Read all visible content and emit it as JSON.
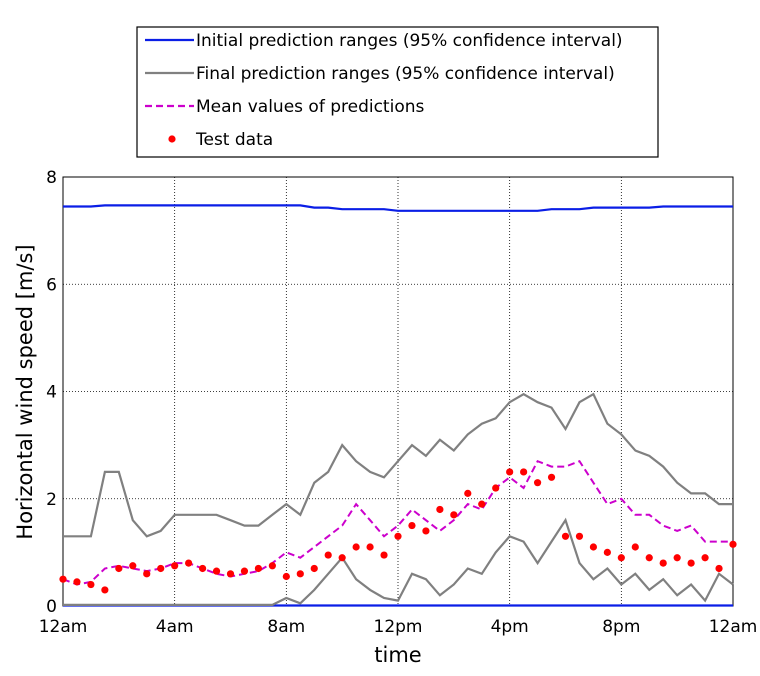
{
  "chart_data": {
    "type": "line",
    "xlabel": "time",
    "ylabel": "Horizontal wind speed [m/s]",
    "x": [
      0,
      0.5,
      1,
      1.5,
      2,
      2.5,
      3,
      3.5,
      4,
      4.5,
      5,
      5.5,
      6,
      6.5,
      7,
      7.5,
      8,
      8.5,
      9,
      9.5,
      10,
      10.5,
      11,
      11.5,
      12,
      12.5,
      13,
      13.5,
      14,
      14.5,
      15,
      15.5,
      16,
      16.5,
      17,
      17.5,
      18,
      18.5,
      19,
      19.5,
      20,
      20.5,
      21,
      21.5,
      22,
      22.5,
      23,
      23.5,
      24
    ],
    "xlim": [
      0,
      24
    ],
    "xticks": [
      {
        "value": 0,
        "label": "12am"
      },
      {
        "value": 4,
        "label": "4am"
      },
      {
        "value": 8,
        "label": "8am"
      },
      {
        "value": 12,
        "label": "12pm"
      },
      {
        "value": 16,
        "label": "4pm"
      },
      {
        "value": 20,
        "label": "8pm"
      },
      {
        "value": 24,
        "label": "12am"
      }
    ],
    "ylim": [
      0,
      8
    ],
    "yticks": [
      0,
      2,
      4,
      6,
      8
    ],
    "grid": true,
    "series": [
      {
        "name": "Initial prediction ranges (95% confidence interval)",
        "color": "#0a1ee6",
        "style": "solid",
        "values": [
          7.45,
          7.45,
          7.45,
          7.47,
          7.47,
          7.47,
          7.47,
          7.47,
          7.47,
          7.47,
          7.47,
          7.47,
          7.47,
          7.47,
          7.47,
          7.47,
          7.47,
          7.47,
          7.43,
          7.43,
          7.4,
          7.4,
          7.4,
          7.4,
          7.37,
          7.37,
          7.37,
          7.37,
          7.37,
          7.37,
          7.37,
          7.37,
          7.37,
          7.37,
          7.37,
          7.4,
          7.4,
          7.4,
          7.43,
          7.43,
          7.43,
          7.43,
          7.43,
          7.45,
          7.45,
          7.45,
          7.45,
          7.45,
          7.45
        ]
      },
      {
        "color": "#0a1ee6",
        "style": "solid",
        "values": [
          0.01,
          0.01,
          0.01,
          0.01,
          0.01,
          0.01,
          0.01,
          0.01,
          0.01,
          0.01,
          0.01,
          0.01,
          0.01,
          0.01,
          0.01,
          0.01,
          0.01,
          0.01,
          0.01,
          0.01,
          0.01,
          0.01,
          0.01,
          0.01,
          0.01,
          0.01,
          0.01,
          0.01,
          0.01,
          0.01,
          0.01,
          0.01,
          0.01,
          0.01,
          0.01,
          0.01,
          0.01,
          0.01,
          0.01,
          0.01,
          0.01,
          0.01,
          0.01,
          0.01,
          0.01,
          0.01,
          0.01,
          0.01,
          0.01
        ]
      },
      {
        "name": "Final prediction ranges (95% confidence interval)",
        "color": "#808080",
        "style": "solid",
        "values": [
          1.3,
          1.3,
          1.3,
          2.5,
          2.5,
          1.6,
          1.3,
          1.4,
          1.7,
          1.7,
          1.7,
          1.7,
          1.6,
          1.5,
          1.5,
          1.7,
          1.9,
          1.7,
          2.3,
          2.5,
          3.0,
          2.7,
          2.5,
          2.4,
          2.7,
          3.0,
          2.8,
          3.1,
          2.9,
          3.2,
          3.4,
          3.5,
          3.8,
          3.95,
          3.8,
          3.7,
          3.3,
          3.8,
          3.95,
          3.4,
          3.2,
          2.9,
          2.8,
          2.6,
          2.3,
          2.1,
          2.1,
          1.9,
          1.9
        ]
      },
      {
        "color": "#808080",
        "style": "solid",
        "values": [
          0.02,
          0.02,
          0.02,
          0.02,
          0.02,
          0.02,
          0.02,
          0.02,
          0.02,
          0.02,
          0.02,
          0.02,
          0.02,
          0.02,
          0.02,
          0.02,
          0.15,
          0.05,
          0.3,
          0.6,
          0.9,
          0.5,
          0.3,
          0.15,
          0.1,
          0.6,
          0.5,
          0.2,
          0.4,
          0.7,
          0.6,
          1.0,
          1.3,
          1.2,
          0.8,
          1.2,
          1.6,
          0.8,
          0.5,
          0.7,
          0.4,
          0.6,
          0.3,
          0.5,
          0.2,
          0.4,
          0.1,
          0.6,
          0.4
        ]
      },
      {
        "name": "Mean values of predictions",
        "color": "#cc00cc",
        "style": "dashed",
        "values": [
          0.5,
          0.4,
          0.45,
          0.7,
          0.75,
          0.7,
          0.65,
          0.7,
          0.8,
          0.8,
          0.7,
          0.6,
          0.55,
          0.6,
          0.65,
          0.8,
          1.0,
          0.9,
          1.1,
          1.3,
          1.5,
          1.9,
          1.6,
          1.3,
          1.5,
          1.8,
          1.6,
          1.4,
          1.6,
          1.9,
          1.8,
          2.2,
          2.4,
          2.2,
          2.7,
          2.6,
          2.6,
          2.7,
          2.3,
          1.9,
          2.0,
          1.7,
          1.7,
          1.5,
          1.4,
          1.5,
          1.2,
          1.2,
          1.2
        ]
      },
      {
        "name": "Test data",
        "color": "#ff0000",
        "style": "dots",
        "values": [
          0.5,
          0.45,
          0.4,
          0.3,
          0.7,
          0.75,
          0.6,
          0.7,
          0.75,
          0.8,
          0.7,
          0.65,
          0.6,
          0.65,
          0.7,
          0.75,
          0.55,
          0.6,
          0.7,
          0.95,
          0.9,
          1.1,
          1.1,
          0.95,
          1.3,
          1.5,
          1.4,
          1.8,
          1.7,
          2.1,
          1.9,
          2.2,
          2.5,
          2.5,
          2.3,
          2.4,
          1.3,
          1.3,
          1.1,
          1.0,
          0.9,
          1.1,
          0.9,
          0.8,
          0.9,
          0.8,
          0.9,
          0.7,
          1.15
        ]
      }
    ]
  }
}
